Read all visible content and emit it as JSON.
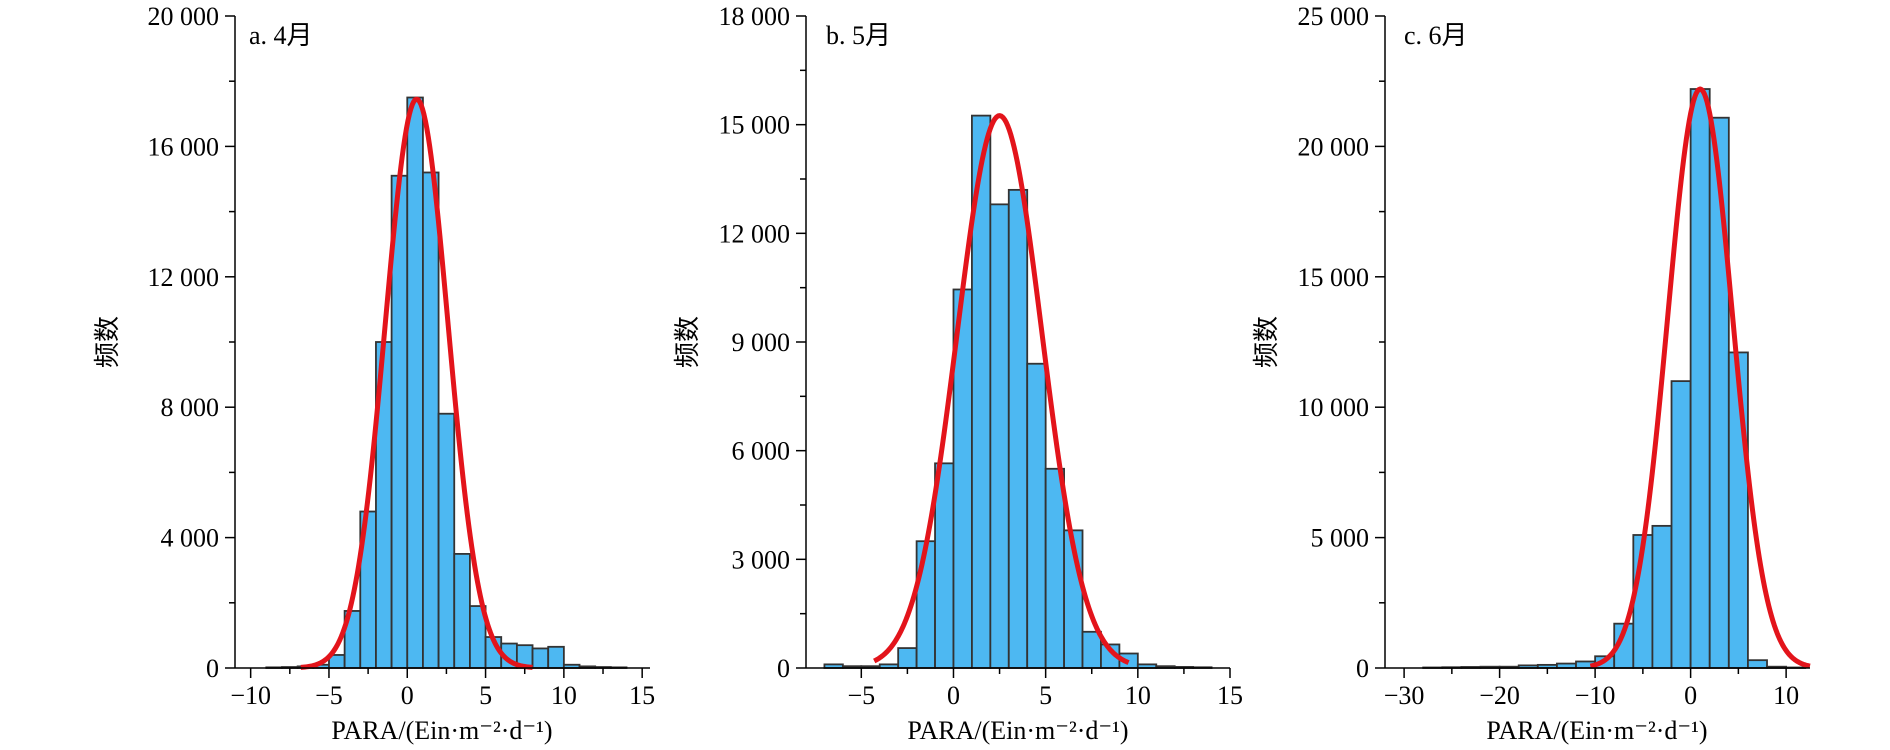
{
  "colors": {
    "bar_fill": "#4db8f2",
    "bar_stroke": "#333333",
    "fit_curve": "#e3141b",
    "axis": "#000000"
  },
  "chart_data": [
    {
      "type": "bar",
      "panel_label": "a. 4月",
      "xlabel": "PARA/(Ein·m⁻²·d⁻¹)",
      "ylabel": "频数",
      "xlim": [
        -11,
        15.5
      ],
      "ylim": [
        0,
        20000
      ],
      "xticks": [
        -10,
        -5,
        0,
        5,
        10,
        15
      ],
      "xtick_labels": [
        "−10",
        "−5",
        "0",
        "5",
        "10",
        "15"
      ],
      "yticks": [
        0,
        4000,
        8000,
        12000,
        16000,
        20000
      ],
      "ytick_labels": [
        "0",
        "4 000",
        "8 000",
        "12 000",
        "16 000",
        "20 000"
      ],
      "bin_width": 1,
      "bin_starts": [
        -9,
        -8,
        -7,
        -6,
        -5,
        -4,
        -3,
        -2,
        -1,
        0,
        1,
        2,
        3,
        4,
        5,
        6,
        7,
        8,
        9,
        10,
        11,
        12,
        13
      ],
      "values": [
        20,
        30,
        50,
        100,
        400,
        1750,
        4800,
        10000,
        15100,
        17500,
        15200,
        7800,
        3500,
        1900,
        950,
        750,
        700,
        600,
        650,
        100,
        50,
        30,
        20
      ],
      "fit": {
        "type": "normal",
        "mean": 0.6,
        "sd": 2.0,
        "peak": 17450,
        "x_range": [
          -6.8,
          8.0
        ]
      }
    },
    {
      "type": "bar",
      "panel_label": "b. 5月",
      "xlabel": "PARA/(Ein·m⁻²·d⁻¹)",
      "ylabel": "频数",
      "xlim": [
        -8,
        15
      ],
      "ylim": [
        0,
        18000
      ],
      "xticks": [
        -5,
        0,
        5,
        10,
        15
      ],
      "xtick_labels": [
        "−5",
        "0",
        "5",
        "10",
        "15"
      ],
      "yticks": [
        0,
        3000,
        6000,
        9000,
        12000,
        15000,
        18000
      ],
      "ytick_labels": [
        "0",
        "3 000",
        "6 000",
        "9 000",
        "12 000",
        "15 000",
        "18 000"
      ],
      "bin_width": 1,
      "bin_starts": [
        -7,
        -6,
        -5,
        -4,
        -3,
        -2,
        -1,
        0,
        1,
        2,
        3,
        4,
        5,
        6,
        7,
        8,
        9,
        10,
        11,
        12,
        13
      ],
      "values": [
        100,
        50,
        50,
        100,
        550,
        3500,
        5650,
        10450,
        15250,
        12800,
        13200,
        8400,
        5500,
        3800,
        1000,
        650,
        400,
        100,
        50,
        30,
        20
      ],
      "fit": {
        "type": "normal",
        "mean": 2.5,
        "sd": 2.3,
        "peak": 15250,
        "x_range": [
          -4.3,
          9.5
        ]
      }
    },
    {
      "type": "bar",
      "panel_label": "c. 6月",
      "xlabel": "PARA/(Ein·m⁻²·d⁻¹)",
      "ylabel": "频数",
      "xlim": [
        -32,
        12.5
      ],
      "ylim": [
        0,
        25000
      ],
      "xticks": [
        -30,
        -20,
        -10,
        0,
        10
      ],
      "xtick_labels": [
        "−30",
        "−20",
        "−10",
        "0",
        "10"
      ],
      "yticks": [
        0,
        5000,
        10000,
        15000,
        20000,
        25000
      ],
      "ytick_labels": [
        "0",
        "5 000",
        "10 000",
        "15 000",
        "20 000",
        "25 000"
      ],
      "bin_width": 2,
      "bin_starts": [
        -28,
        -26,
        -24,
        -22,
        -20,
        -18,
        -16,
        -14,
        -12,
        -10,
        -8,
        -6,
        -4,
        -2,
        0,
        2,
        4,
        6,
        8,
        10
      ],
      "values": [
        20,
        30,
        40,
        50,
        50,
        100,
        120,
        170,
        250,
        450,
        1700,
        5100,
        5450,
        11000,
        22200,
        21100,
        12100,
        300,
        50,
        20
      ],
      "fit": {
        "type": "normal",
        "mean": 1.0,
        "sd": 3.4,
        "peak": 22200,
        "x_range": [
          -10.5,
          12.5
        ]
      }
    }
  ]
}
